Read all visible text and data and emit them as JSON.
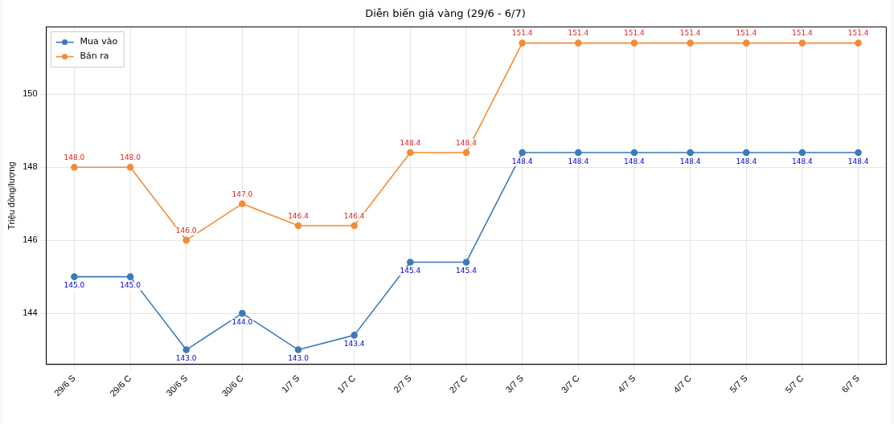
{
  "chart_data": {
    "type": "line",
    "title": "Diễn biến giá vàng (29/6 - 6/7)",
    "ylabel": "Triệu đồng/lượng",
    "categories": [
      "29/6 S",
      "29/6 C",
      "30/6 S",
      "30/6 C",
      "1/7 S",
      "1/7 C",
      "2/7 S",
      "2/7 C",
      "3/7 S",
      "3/7 C",
      "4/7 S",
      "4/7 C",
      "5/7 S",
      "5/7 C",
      "6/7 S"
    ],
    "series": [
      {
        "name": "Mua vào",
        "color": "#3d7ab8",
        "values": [
          145.0,
          145.0,
          143.0,
          144.0,
          143.0,
          143.4,
          145.4,
          145.4,
          148.4,
          148.4,
          148.4,
          148.4,
          148.4,
          148.4,
          148.4
        ],
        "value_labels": [
          "145.0",
          "145.0",
          "143.0",
          "144.0",
          "143.0",
          "143.4",
          "145.4",
          "145.4",
          "148.4",
          "148.4",
          "148.4",
          "148.4",
          "148.4",
          "148.4",
          "148.4"
        ]
      },
      {
        "name": "Bán ra",
        "color": "#f28c38",
        "values": [
          148.0,
          148.0,
          146.0,
          147.0,
          146.4,
          146.4,
          148.4,
          148.4,
          151.4,
          151.4,
          151.4,
          151.4,
          151.4,
          151.4,
          151.4
        ],
        "value_labels": [
          "148.0",
          "148.0",
          "146.0",
          "147.0",
          "146.4",
          "146.4",
          "148.4",
          "148.4",
          "151.4",
          "151.4",
          "151.4",
          "151.4",
          "151.4",
          "151.4",
          "151.4"
        ]
      }
    ],
    "ylim": [
      142.6,
      151.84
    ],
    "yticks": [
      144,
      146,
      148,
      150
    ],
    "grid": true,
    "legend": "top left",
    "marker": "circle",
    "line_style": "solid"
  }
}
